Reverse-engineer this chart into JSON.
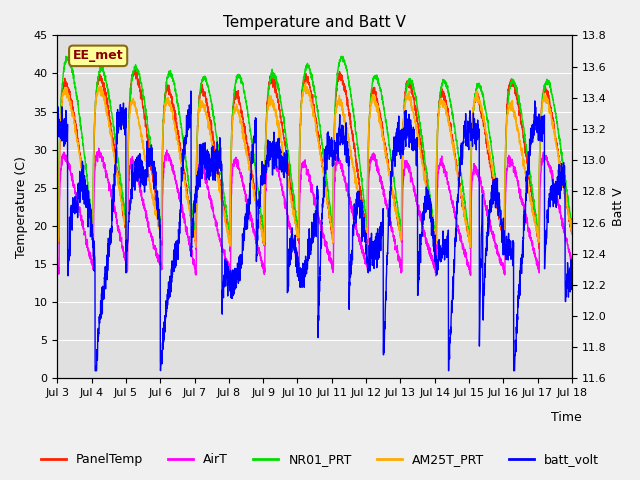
{
  "title": "Temperature and Batt V",
  "xlabel": "Time",
  "ylabel_left": "Temperature (C)",
  "ylabel_right": "Batt V",
  "annotation": "EE_met",
  "ylim_left": [
    0,
    45
  ],
  "ylim_right": [
    11.6,
    13.8
  ],
  "yticks_left": [
    0,
    5,
    10,
    15,
    20,
    25,
    30,
    35,
    40,
    45
  ],
  "yticks_right": [
    11.6,
    11.8,
    12.0,
    12.2,
    12.4,
    12.6,
    12.8,
    13.0,
    13.2,
    13.4,
    13.6,
    13.8
  ],
  "xtick_labels": [
    "Jul 3",
    "Jul 4",
    "Jul 5",
    "Jul 6",
    "Jul 7",
    "Jul 8",
    "Jul 9",
    "Jul 10",
    "Jul 11",
    "Jul 12",
    "Jul 13",
    "Jul 14",
    "Jul 15",
    "Jul 16",
    "Jul 17",
    "Jul 18"
  ],
  "colors": {
    "PanelTemp": "#ff2200",
    "AirT": "#ff00ff",
    "NR01_PRT": "#00dd00",
    "AM25T_PRT": "#ffaa00",
    "batt_volt": "#0000ff"
  },
  "fig_facecolor": "#f0f0f0",
  "ax_facecolor": "#e0e0e0",
  "grid_color": "#ffffff",
  "linewidth": 1.0,
  "title_fontsize": 11,
  "axis_label_fontsize": 9,
  "tick_fontsize": 8,
  "legend_fontsize": 9,
  "annotation_fontsize": 9
}
